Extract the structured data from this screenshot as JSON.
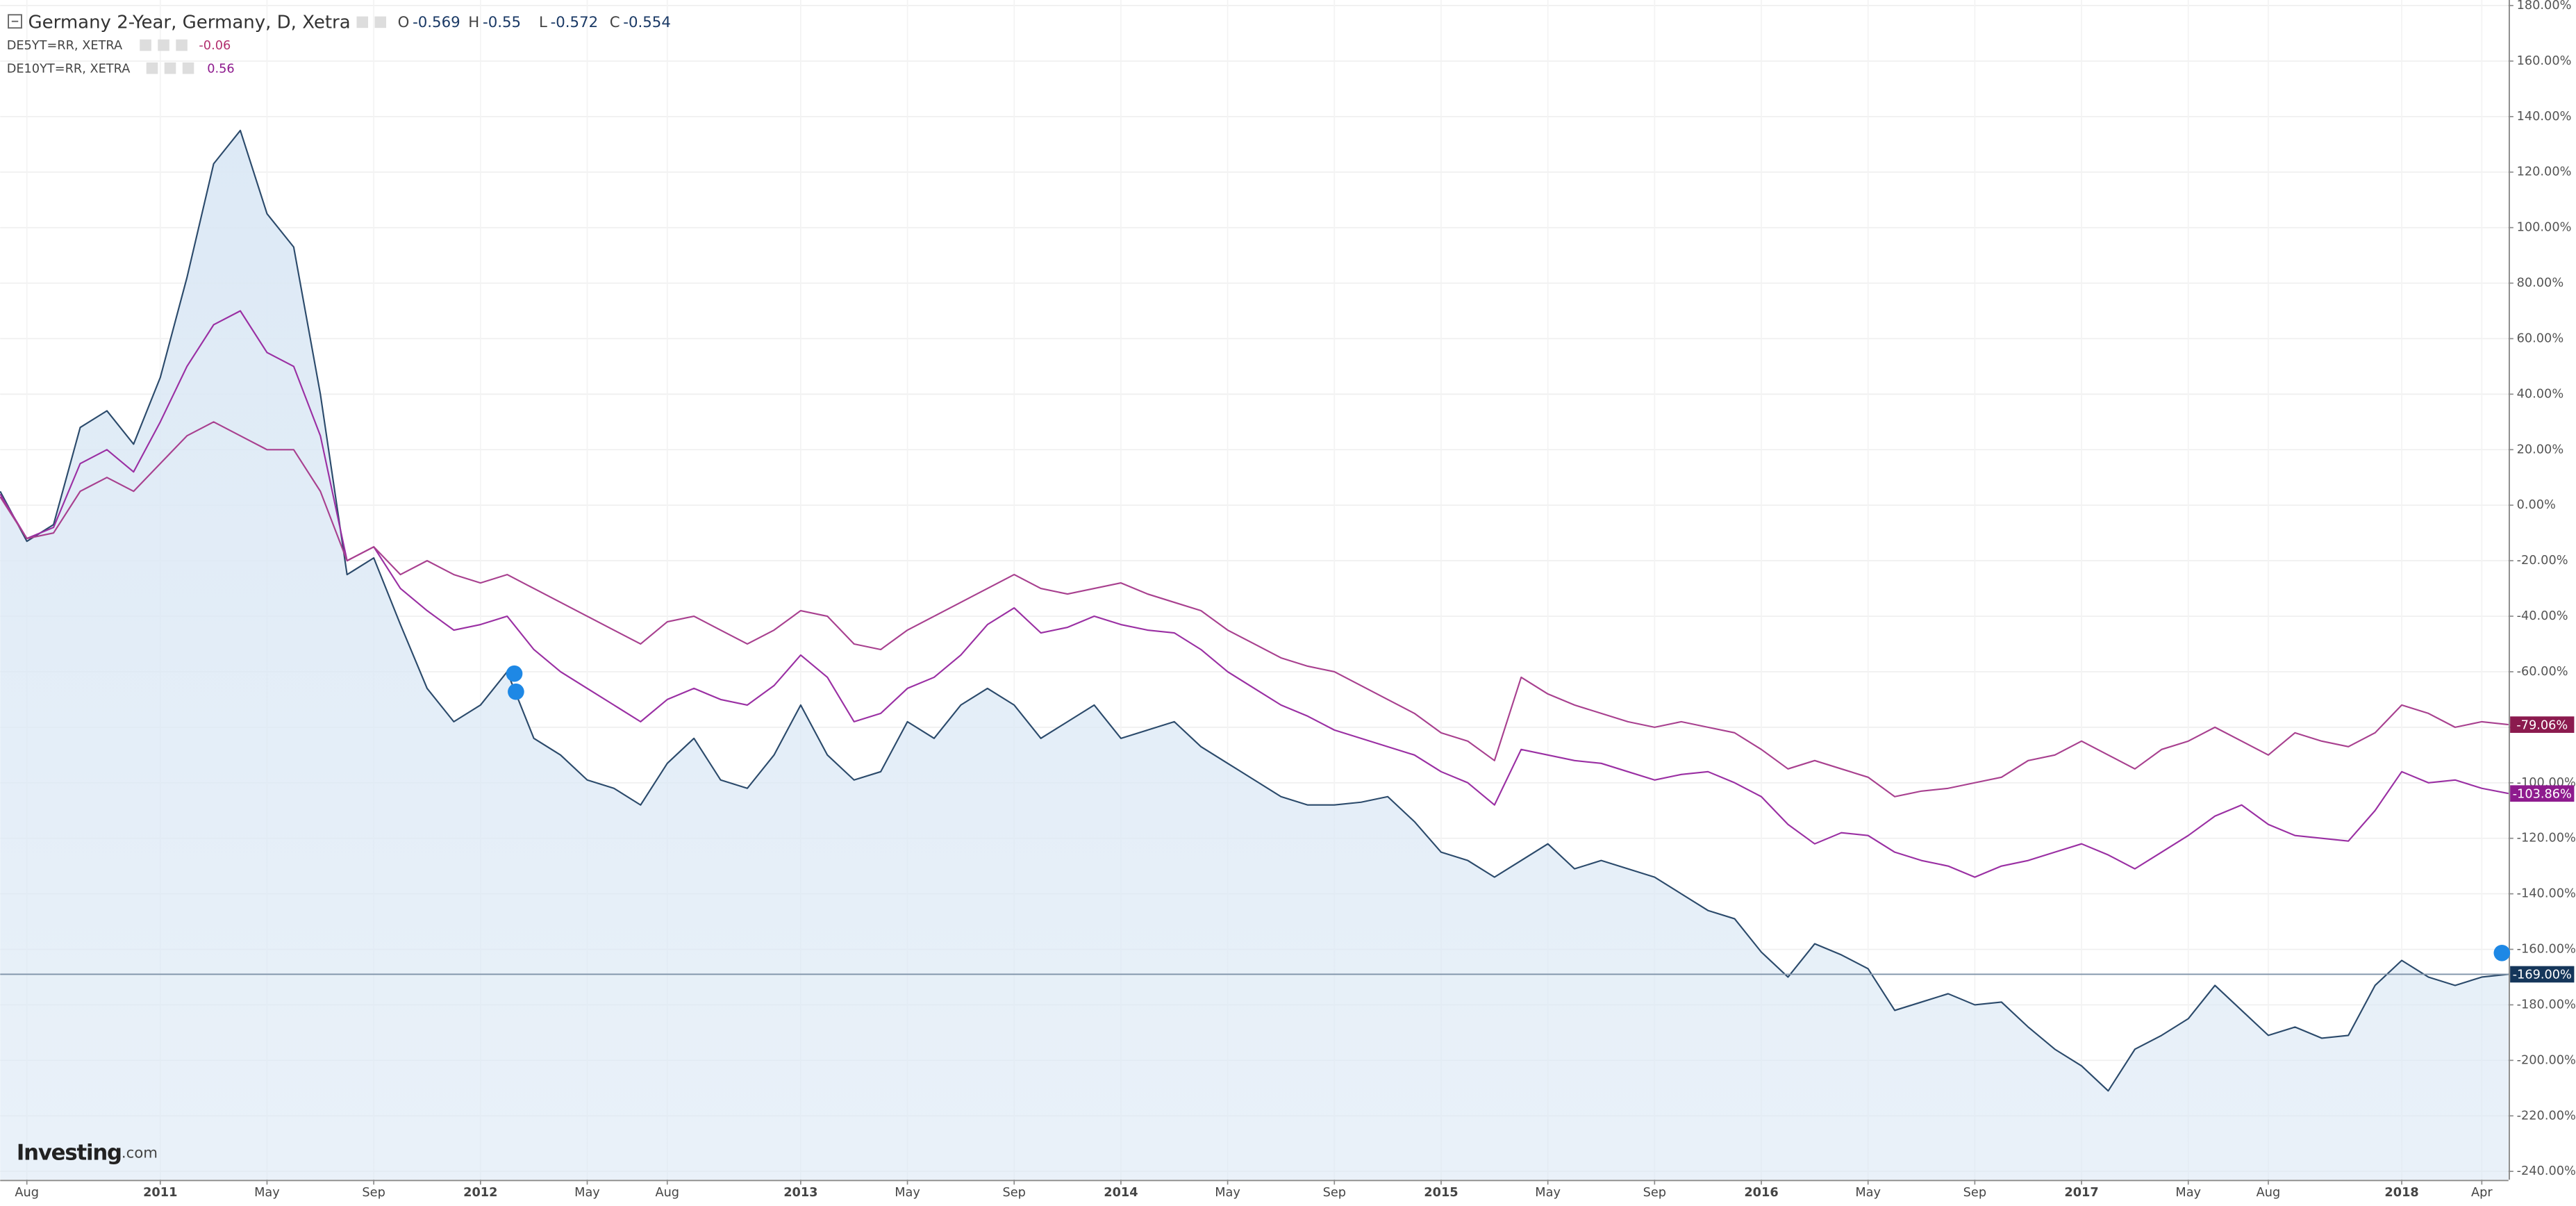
{
  "chart_data": {
    "type": "line",
    "title": "Germany 2-Year, Germany, D, Xetra",
    "ohlc": [
      {
        "label": "O",
        "value": -0.569
      },
      {
        "label": "H",
        "value": -0.55
      },
      {
        "label": "L",
        "value": -0.572
      },
      {
        "label": "C",
        "value": -0.554
      }
    ],
    "watermark": "Investing",
    "watermark_suffix": ".com",
    "x": [
      "2010-07",
      "2010-08",
      "2010-09",
      "2010-10",
      "2010-11",
      "2010-12",
      "2011-01",
      "2011-02",
      "2011-03",
      "2011-04",
      "2011-05",
      "2011-06",
      "2011-07",
      "2011-08",
      "2011-09",
      "2011-10",
      "2011-11",
      "2011-12",
      "2012-01",
      "2012-02",
      "2012-03",
      "2012-04",
      "2012-05",
      "2012-06",
      "2012-07",
      "2012-08",
      "2012-09",
      "2012-10",
      "2012-11",
      "2012-12",
      "2013-01",
      "2013-02",
      "2013-03",
      "2013-04",
      "2013-05",
      "2013-06",
      "2013-07",
      "2013-08",
      "2013-09",
      "2013-10",
      "2013-11",
      "2013-12",
      "2014-01",
      "2014-02",
      "2014-03",
      "2014-04",
      "2014-05",
      "2014-06",
      "2014-07",
      "2014-08",
      "2014-09",
      "2014-10",
      "2014-11",
      "2014-12",
      "2015-01",
      "2015-02",
      "2015-03",
      "2015-04",
      "2015-05",
      "2015-06",
      "2015-07",
      "2015-08",
      "2015-09",
      "2015-10",
      "2015-11",
      "2015-12",
      "2016-01",
      "2016-02",
      "2016-03",
      "2016-04",
      "2016-05",
      "2016-06",
      "2016-07",
      "2016-08",
      "2016-09",
      "2016-10",
      "2016-11",
      "2016-12",
      "2017-01",
      "2017-02",
      "2017-03",
      "2017-04",
      "2017-05",
      "2017-06",
      "2017-07",
      "2017-08",
      "2017-09",
      "2017-10",
      "2017-11",
      "2017-12",
      "2018-01",
      "2018-02",
      "2018-03",
      "2018-04",
      "2018-05"
    ],
    "series": [
      {
        "name": "Germany 2-Year, Germany, D, Xetra",
        "color": "#2b4a6b",
        "fill": "#dbe8f5",
        "last_label": "-169.00%",
        "label_color": "#15365a",
        "values": [
          5,
          -13,
          -7,
          28,
          34,
          22,
          46,
          82,
          123,
          135,
          105,
          93,
          40,
          -25,
          -19,
          -43,
          -66,
          -78,
          -72,
          -60,
          -84,
          -90,
          -99,
          -102,
          -108,
          -93,
          -84,
          -99,
          -102,
          -90,
          -72,
          -90,
          -99,
          -96,
          -78,
          -84,
          -72,
          -66,
          -72,
          -84,
          -78,
          -72,
          -84,
          -81,
          -78,
          -87,
          -93,
          -99,
          -105,
          -108,
          -108,
          -107,
          -105,
          -114,
          -125,
          -128,
          -134,
          -128,
          -122,
          -131,
          -128,
          -131,
          -134,
          -140,
          -146,
          -149,
          -161,
          -170,
          -158,
          -162,
          -167,
          -182,
          -179,
          -176,
          -180,
          -179,
          -188,
          -196,
          -202,
          -211,
          -196,
          -191,
          -185,
          -173,
          -182,
          -191,
          -188,
          -192,
          -191,
          -173,
          -164,
          -170,
          -173,
          -170,
          -169
        ]
      },
      {
        "name": "DE5YT=RR, XETRA",
        "color": "#9a2fa3",
        "legend_value": -0.06,
        "legend_color": "#b2306f",
        "last_label": "-103.86%",
        "label_color": "#8e1b8e",
        "values": [
          4,
          -12,
          -8,
          15,
          20,
          12,
          30,
          50,
          65,
          70,
          55,
          50,
          25,
          -20,
          -15,
          -30,
          -38,
          -45,
          -43,
          -40,
          -52,
          -60,
          -66,
          -72,
          -78,
          -70,
          -66,
          -70,
          -72,
          -65,
          -54,
          -62,
          -78,
          -75,
          -66,
          -62,
          -54,
          -43,
          -37,
          -46,
          -44,
          -40,
          -43,
          -45,
          -46,
          -52,
          -60,
          -66,
          -72,
          -76,
          -81,
          -84,
          -87,
          -90,
          -96,
          -100,
          -108,
          -88,
          -90,
          -92,
          -93,
          -96,
          -99,
          -97,
          -96,
          -100,
          -105,
          -115,
          -122,
          -118,
          -119,
          -125,
          -128,
          -130,
          -134,
          -130,
          -128,
          -125,
          -122,
          -126,
          -131,
          -125,
          -119,
          -112,
          -108,
          -115,
          -119,
          -120,
          -121,
          -110,
          -96,
          -100,
          -99,
          -102,
          -103.86
        ]
      },
      {
        "name": "DE10YT=RR, XETRA",
        "color": "#a8408f",
        "legend_value": 0.56,
        "legend_color": "#8e1b8e",
        "last_label": "-79.06%",
        "label_color": "#8b1a4e",
        "values": [
          3,
          -12,
          -10,
          5,
          10,
          5,
          15,
          25,
          30,
          25,
          20,
          20,
          5,
          -20,
          -15,
          -25,
          -20,
          -25,
          -28,
          -25,
          -30,
          -35,
          -40,
          -45,
          -50,
          -42,
          -40,
          -45,
          -50,
          -45,
          -38,
          -40,
          -50,
          -52,
          -45,
          -40,
          -35,
          -30,
          -25,
          -30,
          -32,
          -30,
          -28,
          -32,
          -35,
          -38,
          -45,
          -50,
          -55,
          -58,
          -60,
          -65,
          -70,
          -75,
          -82,
          -85,
          -92,
          -62,
          -68,
          -72,
          -75,
          -78,
          -80,
          -78,
          -80,
          -82,
          -88,
          -95,
          -92,
          -95,
          -98,
          -105,
          -103,
          -102,
          -100,
          -98,
          -92,
          -90,
          -85,
          -90,
          -95,
          -88,
          -85,
          -80,
          -85,
          -90,
          -82,
          -85,
          -87,
          -82,
          -72,
          -75,
          -80,
          -78,
          -79.06
        ]
      }
    ],
    "xlim": [
      "2010-07",
      "2018-05"
    ],
    "xticks": [
      {
        "value": "2010-08",
        "label": "Aug"
      },
      {
        "value": "2011-01",
        "label": "2011"
      },
      {
        "value": "2011-05",
        "label": "May"
      },
      {
        "value": "2011-09",
        "label": "Sep"
      },
      {
        "value": "2012-01",
        "label": "2012"
      },
      {
        "value": "2012-05",
        "label": "May"
      },
      {
        "value": "2012-08",
        "label": "Aug"
      },
      {
        "value": "2013-01",
        "label": "2013"
      },
      {
        "value": "2013-05",
        "label": "May"
      },
      {
        "value": "2013-09",
        "label": "Sep"
      },
      {
        "value": "2014-01",
        "label": "2014"
      },
      {
        "value": "2014-05",
        "label": "May"
      },
      {
        "value": "2014-09",
        "label": "Sep"
      },
      {
        "value": "2015-01",
        "label": "2015"
      },
      {
        "value": "2015-05",
        "label": "May"
      },
      {
        "value": "2015-09",
        "label": "Sep"
      },
      {
        "value": "2016-01",
        "label": "2016"
      },
      {
        "value": "2016-05",
        "label": "May"
      },
      {
        "value": "2016-09",
        "label": "Sep"
      },
      {
        "value": "2017-01",
        "label": "2017"
      },
      {
        "value": "2017-05",
        "label": "May"
      },
      {
        "value": "2017-08",
        "label": "Aug"
      },
      {
        "value": "2018-01",
        "label": "2018"
      },
      {
        "value": "2018-04",
        "label": "Apr"
      }
    ],
    "ylim": [
      -243,
      182
    ],
    "yticks": [
      {
        "value": -240,
        "label": "-240.00%"
      },
      {
        "value": -220,
        "label": "-220.00%"
      },
      {
        "value": -200,
        "label": "-200.00%"
      },
      {
        "value": -180,
        "label": "-180.00%"
      },
      {
        "value": -160,
        "label": "-160.00%"
      },
      {
        "value": -140,
        "label": "-140.00%"
      },
      {
        "value": -120,
        "label": "-120.00%"
      },
      {
        "value": -100,
        "label": "-100.00%"
      },
      {
        "value": -80,
        "label": "-80.00%"
      },
      {
        "value": -60,
        "label": "-60.00%"
      },
      {
        "value": -40,
        "label": "-40.00%"
      },
      {
        "value": -20,
        "label": "-20.00%"
      },
      {
        "value": 0,
        "label": "0.00%"
      },
      {
        "value": 20,
        "label": "20.00%"
      },
      {
        "value": 40,
        "label": "40.00%"
      },
      {
        "value": 60,
        "label": "60.00%"
      },
      {
        "value": 80,
        "label": "80.00%"
      },
      {
        "value": 100,
        "label": "100.00%"
      },
      {
        "value": 120,
        "label": "120.00%"
      },
      {
        "value": 140,
        "label": "140.00%"
      },
      {
        "value": 160,
        "label": "160.00%"
      },
      {
        "value": 180,
        "label": "180.00%"
      }
    ],
    "grid": true,
    "price_line": true
  }
}
